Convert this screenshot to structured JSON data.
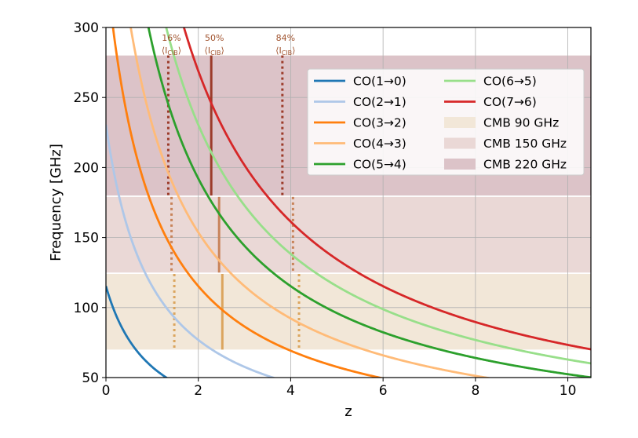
{
  "chart_data": {
    "type": "line",
    "title": "",
    "xlabel": "z",
    "ylabel": "Frequency [GHz]",
    "xlim": [
      0,
      10.5
    ],
    "ylim": [
      50,
      300
    ],
    "xticks": [
      0,
      2,
      4,
      6,
      8,
      10
    ],
    "yticks": [
      50,
      100,
      150,
      200,
      250,
      300
    ],
    "grid": true,
    "legend_position": "top-right",
    "legend_columns": 2,
    "series": [
      {
        "name": "CO(1→0)",
        "rest_freq_ghz": 115.27,
        "color": "#1f77b4",
        "formula": "nu_rest/(1+z)"
      },
      {
        "name": "CO(2→1)",
        "rest_freq_ghz": 230.54,
        "color": "#aec7e8",
        "formula": "nu_rest/(1+z)"
      },
      {
        "name": "CO(3→2)",
        "rest_freq_ghz": 345.8,
        "color": "#ff7f0e",
        "formula": "nu_rest/(1+z)"
      },
      {
        "name": "CO(4→3)",
        "rest_freq_ghz": 461.04,
        "color": "#ffbb78",
        "formula": "nu_rest/(1+z)"
      },
      {
        "name": "CO(5→4)",
        "rest_freq_ghz": 576.27,
        "color": "#2ca02c",
        "formula": "nu_rest/(1+z)"
      },
      {
        "name": "CO(6→5)",
        "rest_freq_ghz": 691.47,
        "color": "#98df8a",
        "formula": "nu_rest/(1+z)"
      },
      {
        "name": "CO(7→6)",
        "rest_freq_ghz": 806.65,
        "color": "#d62728",
        "formula": "nu_rest/(1+z)"
      }
    ],
    "bands": [
      {
        "name": "CMB 90 GHz",
        "range": [
          70,
          124
        ],
        "color": "#f2e7d8"
      },
      {
        "name": "CMB 150 GHz",
        "range": [
          125,
          179
        ],
        "color": "#ead8d6"
      },
      {
        "name": "CMB 220 GHz",
        "range": [
          180,
          280
        ],
        "color": "#dcc3c8"
      }
    ],
    "markers": [
      {
        "label_pct": "16%",
        "z": 1.35,
        "range": [
          180,
          280
        ],
        "style": "dotted",
        "color": "#9c3b2a"
      },
      {
        "label_pct": "50%",
        "z": 2.28,
        "range": [
          180,
          280
        ],
        "style": "solid",
        "color": "#9c3b2a"
      },
      {
        "label_pct": "84%",
        "z": 3.82,
        "range": [
          180,
          280
        ],
        "style": "dotted",
        "color": "#9c3b2a"
      },
      {
        "z": 1.42,
        "range": [
          125,
          179
        ],
        "style": "dotted",
        "color": "#c8835a"
      },
      {
        "z": 2.45,
        "range": [
          125,
          179
        ],
        "style": "solid",
        "color": "#c8835a"
      },
      {
        "z": 4.05,
        "range": [
          125,
          179
        ],
        "style": "dotted",
        "color": "#c8835a"
      },
      {
        "z": 1.48,
        "range": [
          70,
          124
        ],
        "style": "dotted",
        "color": "#dba55e"
      },
      {
        "z": 2.52,
        "range": [
          70,
          124
        ],
        "style": "solid",
        "color": "#dba55e"
      },
      {
        "z": 4.18,
        "range": [
          70,
          124
        ],
        "style": "dotted",
        "color": "#dba55e"
      }
    ],
    "annotation_symbol": "⟨I",
    "annotation_subscript": "CIB",
    "annotation_close": "⟩",
    "annotation_color": "#a0522d"
  }
}
